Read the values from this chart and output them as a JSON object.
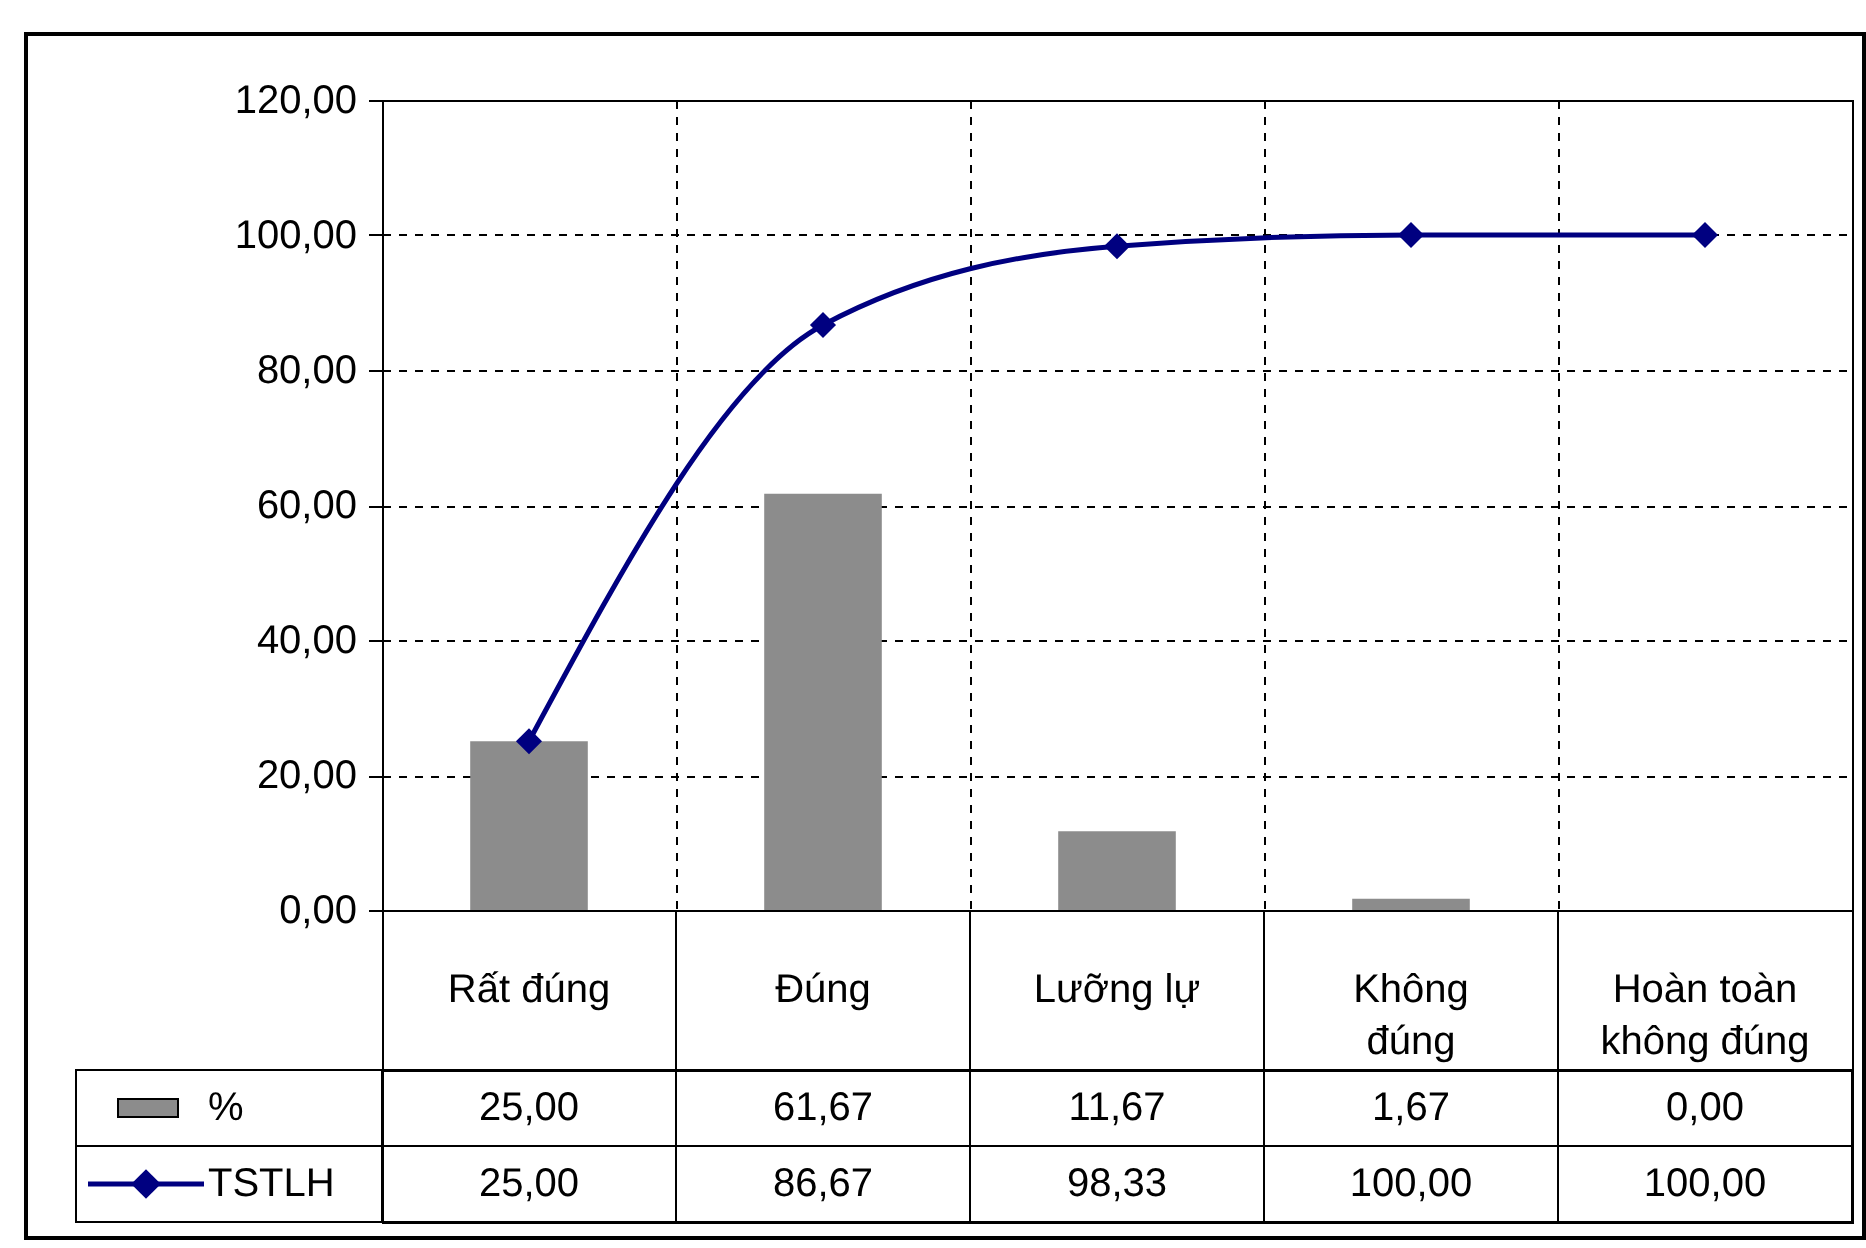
{
  "chart_data": {
    "type": "bar",
    "categories": [
      "Rất đúng",
      "Đúng",
      "Lưỡng lự",
      "Không đúng",
      "Hoàn toàn không đúng"
    ],
    "series": [
      {
        "name": "%",
        "color": "#8c8c8c",
        "values": [
          25,
          61.67,
          11.67,
          1.67,
          0
        ],
        "value_labels": [
          "25,00",
          "61,67",
          "11,67",
          "1,67",
          "0,00"
        ]
      },
      {
        "name": "TSTLH",
        "type": "line",
        "color": "#000080",
        "values": [
          25,
          86.67,
          98.33,
          100,
          100
        ],
        "value_labels": [
          "25,00",
          "86,67",
          "98,33",
          "100,00",
          "100,00"
        ]
      }
    ],
    "ylim": [
      0,
      120
    ],
    "yticks": [
      {
        "value": 0,
        "label": "0,00"
      },
      {
        "value": 20,
        "label": "20,00"
      },
      {
        "value": 40,
        "label": "40,00"
      },
      {
        "value": 60,
        "label": "60,00"
      },
      {
        "value": 80,
        "label": "80,00"
      },
      {
        "value": 100,
        "label": "100,00"
      },
      {
        "value": 120,
        "label": "120,00"
      }
    ],
    "grid": true,
    "marker": "diamond",
    "line_style": "solid",
    "legend": "bottom left"
  }
}
